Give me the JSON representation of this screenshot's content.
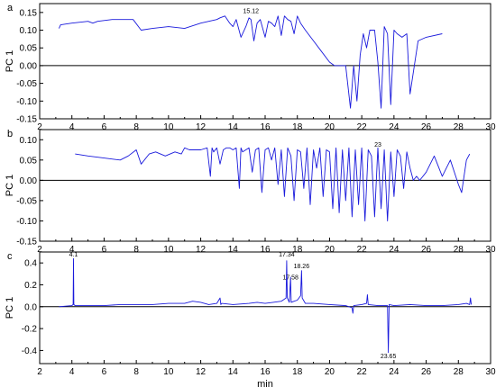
{
  "chart_data": [
    {
      "type": "line",
      "panel_label": "a",
      "ylabel": "PC 1",
      "xlim": [
        2,
        30
      ],
      "ylim": [
        -0.15,
        0.175
      ],
      "xticks": [
        2,
        4,
        6,
        8,
        10,
        12,
        14,
        16,
        18,
        20,
        22,
        24,
        26,
        28,
        30
      ],
      "yticks": [
        0.15,
        0.1,
        0.05,
        0.0,
        -0.05,
        -0.1,
        -0.15
      ],
      "ytick_labels": [
        "0.15",
        "0.10",
        "0.05",
        "0.00",
        "-0.05",
        "-0.10",
        "-0.15"
      ],
      "series_color": "#1a1adc",
      "annotations": [
        {
          "text": "15.12",
          "x": 15.12,
          "y": 0.148
        }
      ],
      "series": [
        {
          "x": [
            3.2,
            3.3,
            4.0,
            5.0,
            5.3,
            5.6,
            6.5,
            7.5,
            7.8,
            8.3,
            9.0,
            10.0,
            11.0,
            12.0,
            13.0,
            13.2,
            13.5,
            13.8,
            14.0,
            14.2,
            14.5,
            14.8,
            15.0,
            15.12,
            15.3,
            15.5,
            15.7,
            16.0,
            16.2,
            16.4,
            16.6,
            16.8,
            17.0,
            17.2,
            17.4,
            17.6,
            17.8,
            18.0,
            18.2,
            18.5,
            19.0,
            19.5,
            20.0,
            20.3,
            20.5,
            21.0,
            21.3,
            21.5,
            21.7,
            21.9,
            22.1,
            22.3,
            22.5,
            22.8,
            23.0,
            23.2,
            23.4,
            23.6,
            23.8,
            24.0,
            24.2,
            24.5,
            24.8,
            25.0,
            25.5,
            26.0,
            27.0
          ],
          "y": [
            0.105,
            0.115,
            0.12,
            0.125,
            0.12,
            0.125,
            0.13,
            0.13,
            0.13,
            0.1,
            0.105,
            0.11,
            0.105,
            0.12,
            0.13,
            0.135,
            0.14,
            0.12,
            0.11,
            0.13,
            0.08,
            0.11,
            0.135,
            0.13,
            0.07,
            0.12,
            0.13,
            0.08,
            0.125,
            0.12,
            0.11,
            0.14,
            0.085,
            0.14,
            0.13,
            0.125,
            0.09,
            0.14,
            0.12,
            0.1,
            0.07,
            0.04,
            0.01,
            0.0,
            0.0,
            0.0,
            -0.12,
            0.0,
            -0.1,
            0.03,
            0.09,
            0.05,
            0.1,
            0.1,
            0.01,
            -0.12,
            0.11,
            0.09,
            -0.11,
            0.1,
            0.09,
            0.08,
            0.09,
            -0.08,
            0.07,
            0.08,
            0.09
          ]
        }
      ]
    },
    {
      "type": "line",
      "panel_label": "b",
      "ylabel": "PC 1",
      "xlim": [
        2,
        30
      ],
      "ylim": [
        -0.15,
        0.125
      ],
      "xticks": [
        2,
        4,
        6,
        8,
        10,
        12,
        14,
        16,
        18,
        20,
        22,
        24,
        26,
        28,
        30
      ],
      "yticks": [
        0.1,
        0.05,
        0.0,
        -0.05,
        -0.1,
        -0.15
      ],
      "ytick_labels": [
        "0.10",
        "0.05",
        "0.00",
        "-0.05",
        "-0.10",
        "-0.15"
      ],
      "series_color": "#1a1adc",
      "annotations": [
        {
          "text": "23",
          "x": 23.0,
          "y": 0.083
        }
      ],
      "series": [
        {
          "x": [
            4.2,
            5.0,
            6.0,
            7.0,
            7.5,
            8.0,
            8.3,
            8.8,
            9.2,
            9.8,
            10.4,
            10.8,
            11.0,
            11.3,
            12.0,
            12.4,
            12.6,
            12.7,
            12.8,
            13.0,
            13.2,
            13.4,
            13.6,
            13.8,
            14.0,
            14.2,
            14.4,
            14.5,
            14.6,
            14.8,
            15.0,
            15.2,
            15.4,
            15.6,
            15.8,
            16.0,
            16.2,
            16.4,
            16.6,
            16.8,
            17.0,
            17.2,
            17.4,
            17.6,
            17.8,
            18.0,
            18.2,
            18.4,
            18.6,
            18.8,
            19.0,
            19.2,
            19.4,
            19.6,
            19.8,
            20.0,
            20.2,
            20.4,
            20.6,
            20.8,
            21.0,
            21.2,
            21.4,
            21.6,
            21.8,
            22.0,
            22.2,
            22.4,
            22.6,
            22.8,
            23.0,
            23.2,
            23.4,
            23.6,
            23.8,
            24.0,
            24.2,
            24.4,
            24.6,
            24.8,
            25.0,
            25.2,
            25.4,
            25.6,
            26.0,
            26.5,
            27.0,
            27.5,
            28.0,
            28.2,
            28.5,
            28.7
          ],
          "y": [
            0.065,
            0.06,
            0.055,
            0.05,
            0.06,
            0.075,
            0.04,
            0.065,
            0.07,
            0.06,
            0.07,
            0.065,
            0.08,
            0.075,
            0.075,
            0.08,
            0.01,
            0.08,
            0.07,
            0.08,
            0.04,
            0.075,
            0.08,
            0.08,
            0.075,
            0.08,
            -0.02,
            0.08,
            0.07,
            0.075,
            0.08,
            0.02,
            0.075,
            0.08,
            -0.03,
            0.075,
            0.08,
            0.05,
            0.08,
            -0.01,
            0.075,
            -0.04,
            0.08,
            0.06,
            -0.05,
            0.075,
            0.07,
            -0.02,
            0.08,
            -0.06,
            0.075,
            0.03,
            0.08,
            -0.04,
            0.075,
            0.07,
            -0.07,
            0.08,
            -0.08,
            0.075,
            -0.05,
            0.08,
            -0.09,
            0.075,
            -0.06,
            0.08,
            -0.1,
            0.075,
            0.06,
            -0.09,
            0.08,
            -0.07,
            0.075,
            -0.1,
            0.07,
            -0.04,
            0.075,
            0.06,
            -0.02,
            0.07,
            0.03,
            0.0,
            0.01,
            0.0,
            0.02,
            0.06,
            0.01,
            0.05,
            -0.01,
            -0.03,
            0.05,
            0.065
          ]
        }
      ]
    },
    {
      "type": "line",
      "panel_label": "c",
      "ylabel": "PC 1",
      "xlabel": "min",
      "xlim": [
        2,
        30
      ],
      "ylim": [
        -0.52,
        0.5
      ],
      "xticks": [
        2,
        4,
        6,
        8,
        10,
        12,
        14,
        16,
        18,
        20,
        22,
        24,
        26,
        28,
        30
      ],
      "yticks": [
        0.4,
        0.2,
        0.0,
        -0.2,
        -0.4
      ],
      "ytick_labels": [
        "0.4",
        "0.2",
        "0.0",
        "-0.2",
        "-0.4"
      ],
      "series_color": "#1a1adc",
      "annotations": [
        {
          "text": "4.1",
          "x": 4.1,
          "y": 0.46
        },
        {
          "text": "17.34",
          "x": 17.34,
          "y": 0.46
        },
        {
          "text": "18.26",
          "x": 18.26,
          "y": 0.35
        },
        {
          "text": "17.58",
          "x": 17.58,
          "y": 0.25
        },
        {
          "text": "23.65",
          "x": 23.65,
          "y": -0.47
        }
      ],
      "series": [
        {
          "x": [
            3.2,
            4.0,
            4.08,
            4.1,
            4.12,
            4.2,
            5.0,
            6.0,
            7.0,
            8.0,
            9.0,
            10.0,
            11.0,
            11.5,
            12.0,
            12.5,
            13.0,
            13.2,
            13.25,
            13.3,
            14.0,
            15.0,
            15.5,
            16.0,
            16.5,
            17.0,
            17.3,
            17.34,
            17.38,
            17.5,
            17.58,
            17.62,
            17.8,
            18.0,
            18.2,
            18.26,
            18.3,
            18.5,
            19.0,
            20.0,
            21.0,
            21.4,
            21.45,
            21.5,
            22.0,
            22.3,
            22.35,
            22.4,
            23.0,
            23.6,
            23.65,
            23.7,
            24.0,
            25.0,
            26.0,
            27.0,
            28.0,
            28.5,
            28.7,
            28.75,
            28.8
          ],
          "y": [
            0.0,
            0.01,
            0.02,
            0.44,
            0.02,
            0.01,
            0.01,
            0.01,
            0.02,
            0.02,
            0.02,
            0.03,
            0.03,
            0.05,
            0.04,
            0.02,
            0.03,
            0.08,
            0.02,
            0.03,
            0.02,
            0.03,
            0.04,
            0.03,
            0.04,
            0.05,
            0.08,
            0.42,
            0.08,
            0.04,
            0.27,
            0.04,
            0.05,
            0.06,
            0.1,
            0.33,
            0.08,
            0.03,
            0.03,
            0.02,
            0.01,
            -0.01,
            -0.06,
            0.01,
            0.02,
            0.03,
            0.11,
            0.02,
            0.01,
            0.01,
            -0.42,
            0.02,
            0.01,
            0.02,
            0.01,
            0.01,
            0.02,
            0.03,
            0.02,
            0.08,
            0.02
          ]
        }
      ]
    }
  ]
}
